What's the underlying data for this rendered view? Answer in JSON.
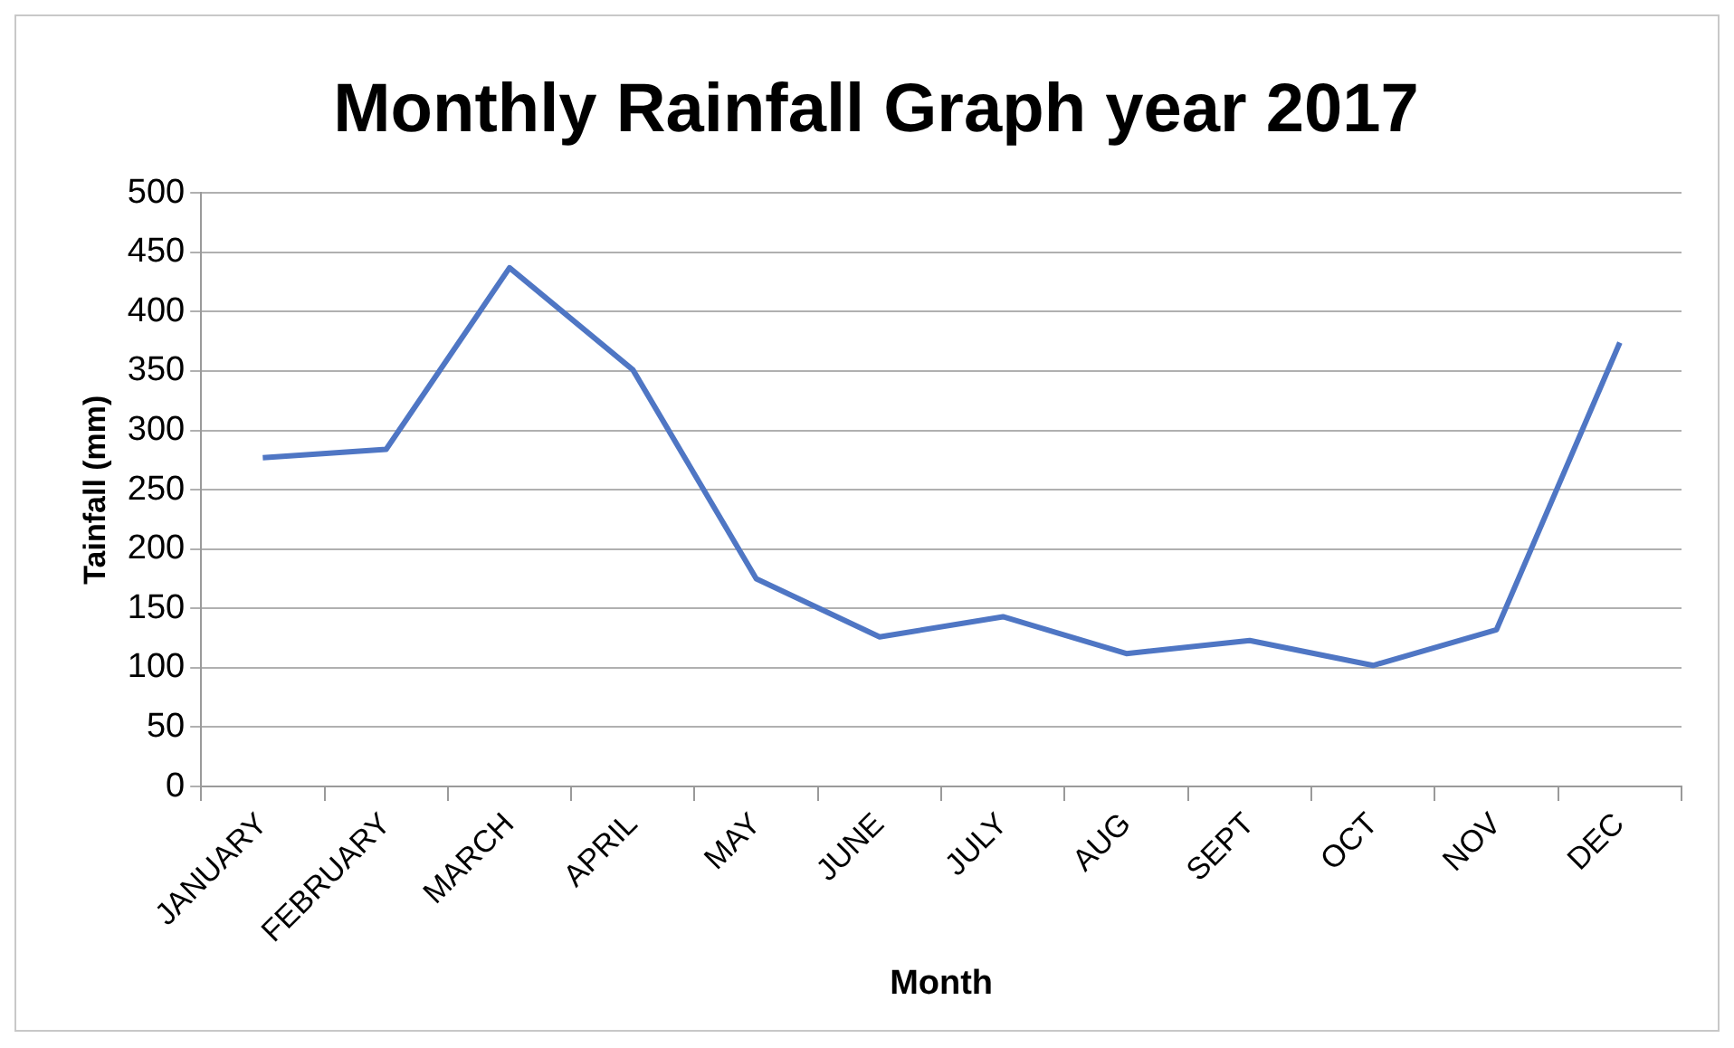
{
  "chart_data": {
    "type": "line",
    "title": "Monthly Rainfall Graph year 2017",
    "xlabel": "Month",
    "ylabel": "Tainfall (mm)",
    "categories": [
      "JANUARY",
      "FEBRUARY",
      "MARCH",
      "APRIL",
      "MAY",
      "JUNE",
      "JULY",
      "AUG",
      "SEPT",
      "OCT",
      "NOV",
      "DEC"
    ],
    "series": [
      {
        "color": "#4f76c4",
        "values": [
          277,
          284,
          437,
          351,
          175,
          126,
          143,
          112,
          123,
          102,
          132,
          374
        ]
      }
    ],
    "ylim": [
      0,
      500
    ],
    "yticks": [
      0,
      50,
      100,
      150,
      200,
      250,
      300,
      350,
      400,
      450,
      500
    ],
    "grid": "y",
    "legend": false,
    "marker": "none",
    "line_style": "solid"
  }
}
